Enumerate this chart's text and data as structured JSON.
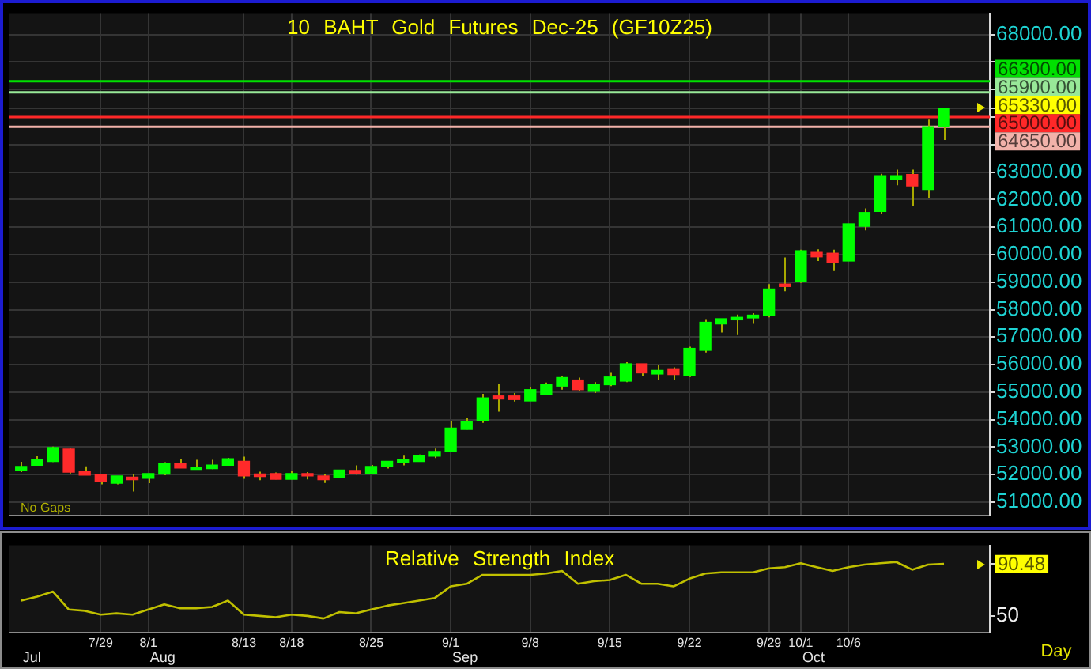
{
  "chart_data": [
    {
      "type": "candlestick",
      "title": "10 BAHT Gold Futures Dec-25 (GF10Z25)",
      "categories": [
        null,
        null,
        null,
        null,
        null,
        null,
        null,
        null,
        null,
        null,
        null,
        null,
        null,
        null,
        null,
        null,
        null,
        null,
        null,
        null,
        null,
        null,
        null,
        null,
        null,
        null,
        null,
        null,
        null,
        null,
        null,
        null,
        null,
        null,
        null,
        null,
        null,
        null,
        null,
        null,
        null,
        null,
        null,
        null,
        null,
        null,
        null,
        null,
        null,
        null,
        null,
        null,
        null,
        null,
        null,
        null,
        null,
        null,
        null
      ],
      "ohlc": [
        [
          52170,
          52470,
          52090,
          52300
        ],
        [
          52340,
          52670,
          52340,
          52540
        ],
        [
          52480,
          53020,
          52460,
          52990
        ],
        [
          52930,
          52950,
          52040,
          52090
        ],
        [
          52130,
          52300,
          51980,
          51980
        ],
        [
          52000,
          52010,
          51650,
          51740
        ],
        [
          51690,
          51950,
          51650,
          51950
        ],
        [
          51910,
          52020,
          51390,
          51820
        ],
        [
          51870,
          52040,
          51690,
          52040
        ],
        [
          52020,
          52450,
          51980,
          52390
        ],
        [
          52390,
          52580,
          52240,
          52240
        ],
        [
          52190,
          52540,
          52190,
          52260
        ],
        [
          52220,
          52540,
          52200,
          52350
        ],
        [
          52340,
          52610,
          52340,
          52580
        ],
        [
          52480,
          52650,
          51850,
          51950
        ],
        [
          52020,
          52110,
          51800,
          51930
        ],
        [
          52040,
          52080,
          51830,
          51830
        ],
        [
          51830,
          52130,
          51830,
          52040
        ],
        [
          52040,
          52090,
          51830,
          51950
        ],
        [
          51950,
          52020,
          51700,
          51820
        ],
        [
          51890,
          52170,
          51890,
          52170
        ],
        [
          52150,
          52340,
          52000,
          52040
        ],
        [
          52040,
          52350,
          52040,
          52300
        ],
        [
          52300,
          52480,
          52220,
          52480
        ],
        [
          52450,
          52690,
          52340,
          52540
        ],
        [
          52480,
          52730,
          52480,
          52690
        ],
        [
          52670,
          52950,
          52600,
          52840
        ],
        [
          52840,
          53950,
          52840,
          53690
        ],
        [
          53640,
          54050,
          53640,
          53930
        ],
        [
          53970,
          54940,
          53880,
          54790
        ],
        [
          54860,
          55290,
          54290,
          54750
        ],
        [
          54860,
          54970,
          54660,
          54730
        ],
        [
          54680,
          55200,
          54680,
          55090
        ],
        [
          54920,
          55350,
          54880,
          55290
        ],
        [
          55220,
          55590,
          55090,
          55530
        ],
        [
          55440,
          55530,
          55030,
          55090
        ],
        [
          55030,
          55360,
          54970,
          55290
        ],
        [
          55270,
          55700,
          55220,
          55550
        ],
        [
          55400,
          56090,
          55360,
          56030
        ],
        [
          56030,
          56030,
          55590,
          55700
        ],
        [
          55660,
          56000,
          55440,
          55790
        ],
        [
          55850,
          55900,
          55440,
          55640
        ],
        [
          55590,
          56650,
          55550,
          56590
        ],
        [
          56520,
          57630,
          56440,
          57540
        ],
        [
          57480,
          57670,
          57170,
          57670
        ],
        [
          57630,
          57820,
          57070,
          57720
        ],
        [
          57700,
          57870,
          57480,
          57800
        ],
        [
          57780,
          58930,
          57720,
          58750
        ],
        [
          58930,
          59900,
          58670,
          58840
        ],
        [
          59020,
          60180,
          58970,
          60140
        ],
        [
          60080,
          60190,
          59770,
          59920
        ],
        [
          60050,
          60180,
          59400,
          59730
        ],
        [
          59770,
          61120,
          59770,
          61120
        ],
        [
          61030,
          61680,
          60880,
          61530
        ],
        [
          61570,
          62940,
          61480,
          62870
        ],
        [
          62740,
          63090,
          62520,
          62870
        ],
        [
          62910,
          63090,
          61770,
          62500
        ],
        [
          62370,
          64910,
          62050,
          64650
        ],
        [
          64650,
          65330,
          64170,
          65330
        ]
      ],
      "colors": [
        "#00ff00",
        "#00ff00",
        "#00ff00",
        "#ff2a2a",
        "#ff2a2a",
        "#ff2a2a",
        "#00ff00",
        "#ff2a2a",
        "#00ff00",
        "#00ff00",
        "#ff2a2a",
        "#00ff00",
        "#00ff00",
        "#00ff00",
        "#ff2a2a",
        "#ff2a2a",
        "#ff2a2a",
        "#00ff00",
        "#ff2a2a",
        "#ff2a2a",
        "#00ff00",
        "#ff2a2a",
        "#00ff00",
        "#00ff00",
        "#00ff00",
        "#00ff00",
        "#00ff00",
        "#00ff00",
        "#00ff00",
        "#00ff00",
        "#ff2a2a",
        "#ff2a2a",
        "#00ff00",
        "#00ff00",
        "#00ff00",
        "#ff2a2a",
        "#00ff00",
        "#00ff00",
        "#00ff00",
        "#ff2a2a",
        "#00ff00",
        "#ff2a2a",
        "#00ff00",
        "#00ff00",
        "#00ff00",
        "#00ff00",
        "#00ff00",
        "#00ff00",
        "#ff2a2a",
        "#00ff00",
        "#ff2a2a",
        "#ff2a2a",
        "#00ff00",
        "#00ff00",
        "#00ff00",
        "#00ff00",
        "#ff2a2a",
        "#00ff00",
        "#00ff00"
      ],
      "ylim": [
        50500,
        68750
      ],
      "yticks": [
        {
          "value": 51000,
          "label": "51000.00"
        },
        {
          "value": 52000,
          "label": "52000.00"
        },
        {
          "value": 53000,
          "label": "53000.00"
        },
        {
          "value": 54000,
          "label": "54000.00"
        },
        {
          "value": 55000,
          "label": "55000.00"
        },
        {
          "value": 56000,
          "label": "56000.00"
        },
        {
          "value": 57000,
          "label": "57000.00"
        },
        {
          "value": 58000,
          "label": "58000.00"
        },
        {
          "value": 59000,
          "label": "59000.00"
        },
        {
          "value": 60000,
          "label": "60000.00"
        },
        {
          "value": 61000,
          "label": "61000.00"
        },
        {
          "value": 62000,
          "label": "62000.00"
        },
        {
          "value": 63000,
          "label": "63000.00"
        },
        {
          "value": 64000,
          "label": null
        },
        {
          "value": 65000,
          "label": null
        },
        {
          "value": 65330,
          "label": "65330.00"
        },
        {
          "value": 66000,
          "label": null
        },
        {
          "value": 67000,
          "label": null
        },
        {
          "value": 68000,
          "label": "68000.00"
        }
      ],
      "grid": true,
      "ref_lines": [
        {
          "axis": "y",
          "value": 66300,
          "label": "66300.00",
          "color": "#00e000"
        },
        {
          "axis": "y",
          "value": 65900,
          "label": "65900.00",
          "color": "#98e898"
        },
        {
          "axis": "y",
          "value": 65000,
          "label": "65000.00",
          "color": "#ff2828"
        },
        {
          "axis": "y",
          "value": 64650,
          "label": "64650.00",
          "color": "#f2b2aa"
        }
      ],
      "annotations": [
        "No Gaps"
      ]
    },
    {
      "type": "line",
      "title": "Relative Strength Index",
      "categories": [
        null,
        null,
        null,
        null,
        null,
        "7/29",
        null,
        null,
        "8/1",
        null,
        null,
        null,
        null,
        null,
        "8/13",
        null,
        null,
        "8/18",
        null,
        null,
        null,
        null,
        "8/25",
        null,
        null,
        null,
        null,
        "9/1",
        null,
        null,
        null,
        null,
        "9/8",
        null,
        null,
        null,
        null,
        "9/15",
        null,
        null,
        null,
        null,
        "9/22",
        null,
        null,
        null,
        null,
        "9/29",
        null,
        "10/1",
        null,
        null,
        "10/6",
        null,
        null,
        null,
        null,
        null,
        null
      ],
      "series": [
        {
          "color": "#c0c000",
          "values": [
            62,
            65,
            69,
            55,
            54,
            51,
            52,
            51,
            55,
            59,
            56,
            56,
            57,
            62,
            51,
            50,
            49,
            51,
            50,
            48,
            53,
            52,
            55,
            58,
            60,
            62,
            64,
            73,
            75,
            82,
            82,
            82,
            82,
            83,
            85,
            75,
            77,
            78,
            82,
            75,
            75,
            73,
            79,
            83,
            84,
            84,
            84,
            87,
            88,
            91,
            88,
            85,
            88,
            90,
            91,
            92,
            86,
            90,
            90.48
          ]
        }
      ],
      "ylim": [
        37,
        105
      ],
      "yticks": [
        50,
        {
          "value": 90.48,
          "label": "90.48"
        }
      ],
      "grid": "x",
      "marker": "none",
      "xlabel": "Day",
      "annotations": [
        "Jul",
        "Aug",
        "Sep",
        "Oct"
      ]
    }
  ]
}
